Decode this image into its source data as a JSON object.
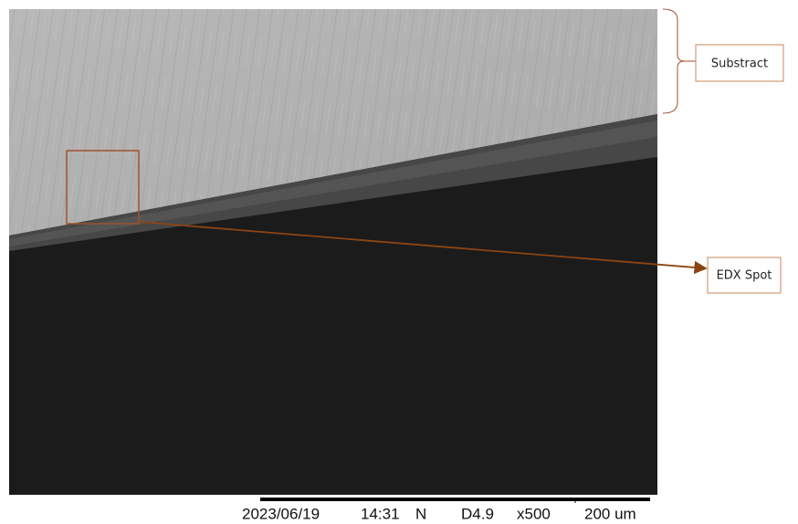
{
  "annotations": {
    "substrate": "Substract",
    "edx_spot": "EDX Spot"
  },
  "info_bar": {
    "date": "2023/06/19",
    "time": "14:31",
    "mode": "N",
    "distance": "D4.9",
    "magnification": "x500",
    "scale": "200 um"
  }
}
